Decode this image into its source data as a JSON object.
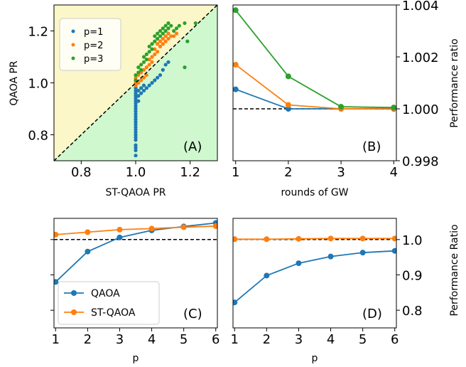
{
  "chart_data": [
    {
      "panel": "A",
      "type": "scatter",
      "panel_label": "(A)",
      "xlabel": "ST-QAOA PR",
      "ylabel": "QAOA PR",
      "xlim": [
        0.7,
        1.3
      ],
      "ylim": [
        0.7,
        1.3
      ],
      "xticks": [
        0.8,
        1.0,
        1.2
      ],
      "yticks": [
        0.8,
        1.0,
        1.2
      ],
      "background": {
        "above_diagonal": "#fbf7c8",
        "below_diagonal": "#cff8cf"
      },
      "reference_line": "y = x (dashed)",
      "legend": {
        "placement": "upper-left"
      },
      "series": [
        {
          "name": "p=1",
          "color": "#1f77b4",
          "points": [
            [
              1.0,
              0.72
            ],
            [
              1.0,
              0.74
            ],
            [
              1.0,
              0.75
            ],
            [
              1.0,
              0.76
            ],
            [
              1.0,
              0.78
            ],
            [
              1.0,
              0.79
            ],
            [
              1.0,
              0.8
            ],
            [
              1.0,
              0.81
            ],
            [
              1.0,
              0.82
            ],
            [
              1.0,
              0.83
            ],
            [
              1.0,
              0.84
            ],
            [
              1.0,
              0.85
            ],
            [
              1.0,
              0.86
            ],
            [
              1.0,
              0.87
            ],
            [
              1.0,
              0.88
            ],
            [
              1.0,
              0.89
            ],
            [
              1.0,
              0.9
            ],
            [
              1.0,
              0.91
            ],
            [
              1.0,
              0.92
            ],
            [
              1.0,
              0.93
            ],
            [
              1.0,
              0.94
            ],
            [
              1.0,
              0.95
            ],
            [
              1.0,
              0.96
            ],
            [
              1.0,
              0.97
            ],
            [
              1.0,
              0.98
            ],
            [
              1.0,
              0.99
            ],
            [
              1.01,
              0.93
            ],
            [
              1.01,
              0.95
            ],
            [
              1.01,
              0.97
            ],
            [
              1.02,
              0.96
            ],
            [
              1.02,
              0.98
            ],
            [
              1.03,
              0.97
            ],
            [
              1.03,
              0.99
            ],
            [
              1.04,
              0.98
            ],
            [
              1.05,
              0.99
            ],
            [
              1.06,
              1.0
            ],
            [
              1.07,
              1.01
            ],
            [
              1.08,
              1.02
            ],
            [
              1.09,
              1.03
            ],
            [
              1.1,
              1.05
            ],
            [
              1.11,
              1.07
            ],
            [
              1.12,
              1.08
            ]
          ]
        },
        {
          "name": "p=2",
          "color": "#ff7f0e",
          "points": [
            [
              1.0,
              0.99
            ],
            [
              1.0,
              1.0
            ],
            [
              1.0,
              1.01
            ],
            [
              1.0,
              1.02
            ],
            [
              1.01,
              1.0
            ],
            [
              1.01,
              1.03
            ],
            [
              1.02,
              1.01
            ],
            [
              1.02,
              1.04
            ],
            [
              1.03,
              1.02
            ],
            [
              1.03,
              1.05
            ],
            [
              1.04,
              1.03
            ],
            [
              1.04,
              1.06
            ],
            [
              1.05,
              1.07
            ],
            [
              1.05,
              1.09
            ],
            [
              1.06,
              1.08
            ],
            [
              1.06,
              1.1
            ],
            [
              1.07,
              1.11
            ],
            [
              1.07,
              1.13
            ],
            [
              1.08,
              1.12
            ],
            [
              1.08,
              1.15
            ],
            [
              1.09,
              1.14
            ],
            [
              1.09,
              1.16
            ],
            [
              1.1,
              1.15
            ],
            [
              1.1,
              1.17
            ],
            [
              1.11,
              1.16
            ],
            [
              1.11,
              1.18
            ],
            [
              1.12,
              1.17
            ],
            [
              1.12,
              1.19
            ],
            [
              1.13,
              1.18
            ],
            [
              1.14,
              1.18
            ],
            [
              1.15,
              1.19
            ]
          ]
        },
        {
          "name": "p=3",
          "color": "#2ca02c",
          "points": [
            [
              1.0,
              1.01
            ],
            [
              1.0,
              1.03
            ],
            [
              1.01,
              1.04
            ],
            [
              1.01,
              1.06
            ],
            [
              1.02,
              1.05
            ],
            [
              1.02,
              1.07
            ],
            [
              1.03,
              1.08
            ],
            [
              1.03,
              1.1
            ],
            [
              1.04,
              1.09
            ],
            [
              1.04,
              1.11
            ],
            [
              1.05,
              1.12
            ],
            [
              1.05,
              1.14
            ],
            [
              1.06,
              1.13
            ],
            [
              1.06,
              1.15
            ],
            [
              1.07,
              1.16
            ],
            [
              1.07,
              1.18
            ],
            [
              1.08,
              1.17
            ],
            [
              1.08,
              1.19
            ],
            [
              1.09,
              1.18
            ],
            [
              1.09,
              1.2
            ],
            [
              1.1,
              1.19
            ],
            [
              1.1,
              1.21
            ],
            [
              1.11,
              1.2
            ],
            [
              1.11,
              1.22
            ],
            [
              1.12,
              1.21
            ],
            [
              1.12,
              1.23
            ],
            [
              1.13,
              1.22
            ],
            [
              1.14,
              1.2
            ],
            [
              1.15,
              1.21
            ],
            [
              1.16,
              1.22
            ],
            [
              1.18,
              1.23
            ],
            [
              1.18,
              1.06
            ],
            [
              1.19,
              1.16
            ],
            [
              1.22,
              1.23
            ]
          ]
        }
      ]
    },
    {
      "panel": "B",
      "type": "line",
      "panel_label": "(B)",
      "xlabel": "rounds of GW",
      "ylabel": "Performance ratio",
      "x": [
        1,
        2,
        3,
        4
      ],
      "xlim": [
        0.95,
        4.05
      ],
      "ylim": [
        0.998,
        1.004
      ],
      "xticks": [
        1,
        2,
        3,
        4
      ],
      "yticks": [
        0.998,
        1.0,
        1.002,
        1.004
      ],
      "ytick_labels": [
        "0.998",
        "1.000",
        "1.002",
        "1.004"
      ],
      "y_axis_side": "right",
      "reference_line": "y = 1.000 (dashed)",
      "series": [
        {
          "color": "#1f77b4",
          "values": [
            1.00075,
            1.0,
            1.0,
            1.0
          ]
        },
        {
          "color": "#ff7f0e",
          "values": [
            1.0017,
            1.00015,
            1.0,
            1.00002
          ]
        },
        {
          "color": "#2ca02c",
          "values": [
            1.0038,
            1.00125,
            1.00008,
            1.00005
          ]
        }
      ]
    },
    {
      "panel": "C",
      "type": "line",
      "panel_label": "(C)",
      "xlabel": "p",
      "x": [
        1,
        2,
        3,
        4,
        5,
        6
      ],
      "xlim": [
        0.95,
        6.05
      ],
      "ylim": [
        0.75,
        1.06
      ],
      "xticks": [
        1,
        2,
        3,
        4,
        5,
        6
      ],
      "yticks": [
        0.8,
        0.9,
        1.0
      ],
      "reference_line": "y = 1.0 (dashed)",
      "legend": {
        "placement": "lower-left"
      },
      "series": [
        {
          "name": "QAOA",
          "color": "#1f77b4",
          "values": [
            0.88,
            0.966,
            1.006,
            1.026,
            1.037,
            1.047
          ]
        },
        {
          "name": "ST-QAOA",
          "color": "#ff7f0e",
          "values": [
            1.014,
            1.021,
            1.028,
            1.031,
            1.035,
            1.038
          ]
        }
      ]
    },
    {
      "panel": "D",
      "type": "line",
      "panel_label": "(D)",
      "xlabel": "p",
      "ylabel": "Performance Ratio",
      "x": [
        1,
        2,
        3,
        4,
        5,
        6
      ],
      "xlim": [
        0.95,
        6.05
      ],
      "ylim": [
        0.75,
        1.06
      ],
      "xticks": [
        1,
        2,
        3,
        4,
        5,
        6
      ],
      "yticks": [
        0.8,
        0.9,
        1.0
      ],
      "ytick_labels": [
        "0.8",
        "0.9",
        "1.0"
      ],
      "y_axis_side": "right",
      "reference_line": "y = 1.0 (dashed)",
      "series": [
        {
          "color": "#1f77b4",
          "values": [
            0.822,
            0.898,
            0.933,
            0.952,
            0.963,
            0.968
          ]
        },
        {
          "color": "#ff7f0e",
          "values": [
            1.001,
            1.001,
            1.002,
            1.003,
            1.003,
            1.003
          ]
        }
      ]
    }
  ]
}
